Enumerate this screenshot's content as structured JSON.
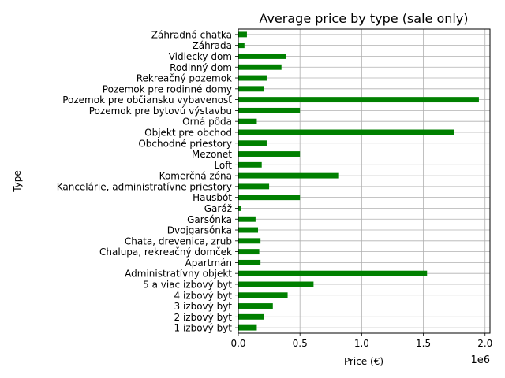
{
  "chart_data": {
    "type": "bar",
    "orientation": "horizontal",
    "title": "Average price by type (sale only)",
    "xlabel": "Price (€)",
    "ylabel": "Type",
    "x_offset_label": "1e6",
    "xlim": [
      0,
      2.04
    ],
    "x_unit_multiplier": 1000000,
    "x_ticks": [
      0.0,
      0.5,
      1.0,
      1.5,
      2.0
    ],
    "x_tick_labels": [
      "0.0",
      "0.5",
      "1.0",
      "1.5",
      "2.0"
    ],
    "grid": true,
    "bar_color": "#008000",
    "categories": [
      "1 izbový byt",
      "2 izbový byt",
      "3 izbový byt",
      "4 izbový byt",
      "5 a viac izbový byt",
      "Administratívny objekt",
      "Apartmán",
      "Chalupa, rekreačný domček",
      "Chata, drevenica, zrub",
      "Dvojgarsónka",
      "Garsónka",
      "Garáž",
      "Hausbót",
      "Kancelárie, administratívne priestory",
      "Komerčná zóna",
      "Loft",
      "Mezonet",
      "Obchodné priestory",
      "Objekt pre obchod",
      "Orná pôda",
      "Pozemok pre bytovú výstavbu",
      "Pozemok pre občiansku vybavenosť",
      "Pozemok pre rodinné domy",
      "Rekreačný pozemok",
      "Rodinný dom",
      "Vidiecky dom",
      "Záhrada",
      "Záhradná chatka"
    ],
    "values": [
      0.15,
      0.21,
      0.28,
      0.4,
      0.61,
      1.53,
      0.18,
      0.17,
      0.18,
      0.16,
      0.14,
      0.02,
      0.5,
      0.25,
      0.81,
      0.19,
      0.5,
      0.23,
      1.75,
      0.15,
      0.5,
      1.95,
      0.21,
      0.23,
      0.35,
      0.39,
      0.05,
      0.07
    ]
  }
}
